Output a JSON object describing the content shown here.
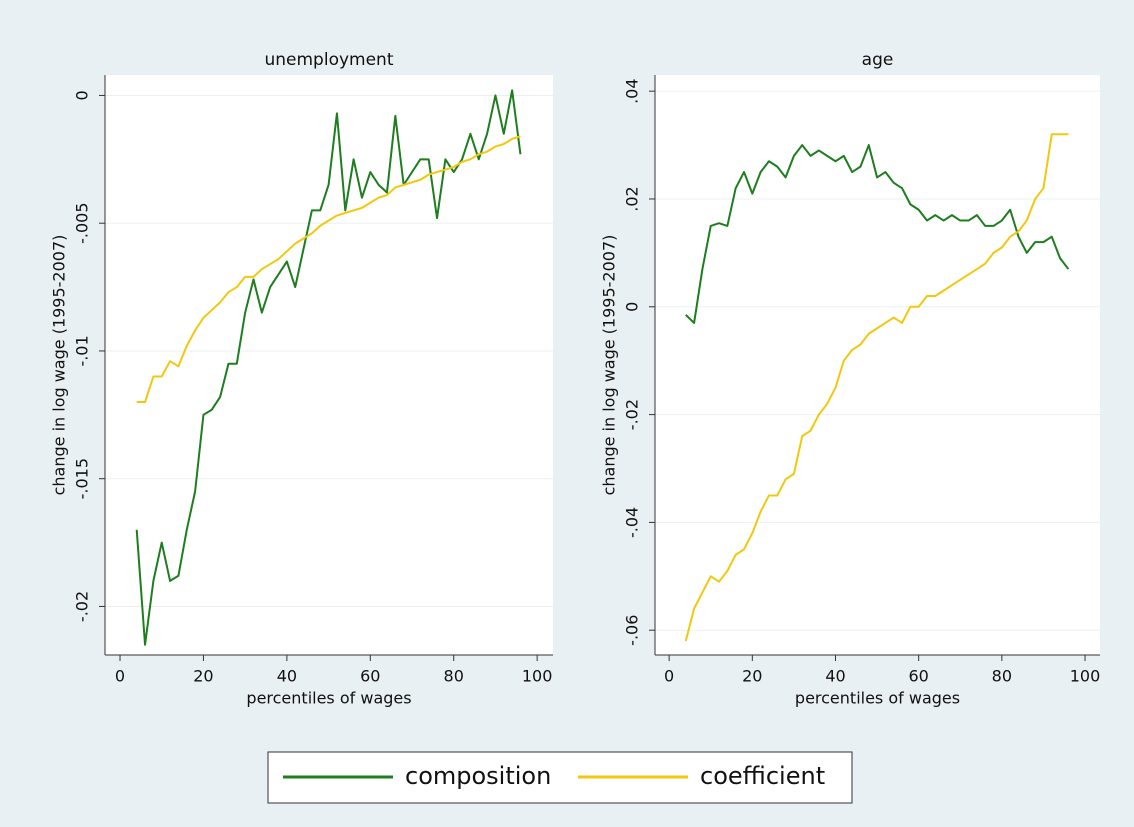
{
  "chart_data": [
    {
      "type": "line",
      "title": "unemployment",
      "x_label": "percentiles of wages",
      "y_label": "change in log wage (1995-2007)",
      "x": [
        4,
        6,
        8,
        10,
        12,
        14,
        16,
        18,
        20,
        22,
        24,
        26,
        28,
        30,
        32,
        34,
        36,
        38,
        40,
        42,
        44,
        46,
        48,
        50,
        52,
        54,
        56,
        58,
        60,
        62,
        64,
        66,
        68,
        70,
        72,
        74,
        76,
        78,
        80,
        82,
        84,
        86,
        88,
        90,
        92,
        94,
        96
      ],
      "series": [
        {
          "name": "composition",
          "color": "#1e7d1e",
          "values": [
            -0.017,
            -0.0215,
            -0.019,
            -0.0175,
            -0.019,
            -0.0188,
            -0.017,
            -0.0155,
            -0.0125,
            -0.0123,
            -0.0118,
            -0.0105,
            -0.0105,
            -0.0085,
            -0.0072,
            -0.0085,
            -0.0075,
            -0.007,
            -0.0065,
            -0.0075,
            -0.006,
            -0.0045,
            -0.0045,
            -0.0035,
            -0.0007,
            -0.0045,
            -0.0025,
            -0.004,
            -0.003,
            -0.0035,
            -0.0038,
            -0.0008,
            -0.0035,
            -0.003,
            -0.0025,
            -0.0025,
            -0.0048,
            -0.0025,
            -0.003,
            -0.0025,
            -0.0015,
            -0.0025,
            -0.0015,
            0.0,
            -0.0015,
            0.0002,
            -0.0023
          ]
        },
        {
          "name": "coefficient",
          "color": "#f2c80f",
          "values": [
            -0.012,
            -0.012,
            -0.011,
            -0.011,
            -0.0104,
            -0.0106,
            -0.0098,
            -0.0092,
            -0.0087,
            -0.0084,
            -0.0081,
            -0.0077,
            -0.0075,
            -0.0071,
            -0.0071,
            -0.0068,
            -0.0066,
            -0.0064,
            -0.0061,
            -0.0058,
            -0.0056,
            -0.0054,
            -0.0051,
            -0.0049,
            -0.0047,
            -0.0046,
            -0.0045,
            -0.0044,
            -0.0042,
            -0.004,
            -0.0039,
            -0.0036,
            -0.0035,
            -0.0034,
            -0.0033,
            -0.0031,
            -0.003,
            -0.0029,
            -0.0028,
            -0.0026,
            -0.0025,
            -0.0023,
            -0.0022,
            -0.002,
            -0.0019,
            -0.0017,
            -0.0016
          ]
        }
      ],
      "xlim": [
        -3.6,
        103.8
      ],
      "xticks": [
        0,
        20,
        40,
        60,
        80,
        100
      ],
      "ylim": [
        -0.0219,
        0.0008
      ],
      "yticks": [
        0,
        {
          "value": -0.005,
          "label": "-.005"
        },
        {
          "value": -0.01,
          "label": "-.01"
        },
        {
          "value": -0.015,
          "label": "-.015"
        },
        {
          "value": -0.02,
          "label": "-.02"
        }
      ],
      "grid": true
    },
    {
      "type": "line",
      "title": "age",
      "x_label": "percentiles of wages",
      "y_label": "change in log wage (1995-2007)",
      "x": [
        4,
        6,
        8,
        10,
        12,
        14,
        16,
        18,
        20,
        22,
        24,
        26,
        28,
        30,
        32,
        34,
        36,
        38,
        40,
        42,
        44,
        46,
        48,
        50,
        52,
        54,
        56,
        58,
        60,
        62,
        64,
        66,
        68,
        70,
        72,
        74,
        76,
        78,
        80,
        82,
        84,
        86,
        88,
        90,
        92,
        94,
        96
      ],
      "series": [
        {
          "name": "composition",
          "color": "#1e7d1e",
          "values": [
            -0.0015,
            -0.003,
            0.007,
            0.015,
            0.0155,
            0.015,
            0.022,
            0.025,
            0.021,
            0.025,
            0.027,
            0.026,
            0.024,
            0.028,
            0.03,
            0.028,
            0.029,
            0.028,
            0.027,
            0.028,
            0.025,
            0.026,
            0.03,
            0.024,
            0.025,
            0.023,
            0.022,
            0.019,
            0.018,
            0.016,
            0.017,
            0.016,
            0.017,
            0.016,
            0.016,
            0.017,
            0.015,
            0.015,
            0.016,
            0.018,
            0.013,
            0.01,
            0.012,
            0.012,
            0.013,
            0.009,
            0.007
          ]
        },
        {
          "name": "coefficient",
          "color": "#f2c80f",
          "values": [
            -0.062,
            -0.056,
            -0.053,
            -0.05,
            -0.051,
            -0.049,
            -0.046,
            -0.045,
            -0.042,
            -0.038,
            -0.035,
            -0.035,
            -0.032,
            -0.031,
            -0.024,
            -0.023,
            -0.02,
            -0.018,
            -0.015,
            -0.01,
            -0.008,
            -0.007,
            -0.005,
            -0.004,
            -0.003,
            -0.002,
            -0.003,
            0,
            0,
            0.002,
            0.002,
            0.003,
            0.004,
            0.005,
            0.006,
            0.007,
            0.008,
            0.01,
            0.011,
            0.013,
            0.014,
            0.016,
            0.02,
            0.022,
            0.032,
            0.032,
            0.032
          ]
        }
      ],
      "xlim": [
        -3.4,
        103.6
      ],
      "xticks": [
        0,
        20,
        40,
        60,
        80,
        100
      ],
      "ylim": [
        -0.0646,
        0.043
      ],
      "yticks": [
        {
          "value": 0.04,
          "label": ".04"
        },
        {
          "value": 0.02,
          "label": ".02"
        },
        0,
        {
          "value": -0.02,
          "label": "-.02"
        },
        {
          "value": -0.04,
          "label": "-.04"
        },
        {
          "value": -0.06,
          "label": "-.06"
        }
      ],
      "grid": true
    }
  ]
}
